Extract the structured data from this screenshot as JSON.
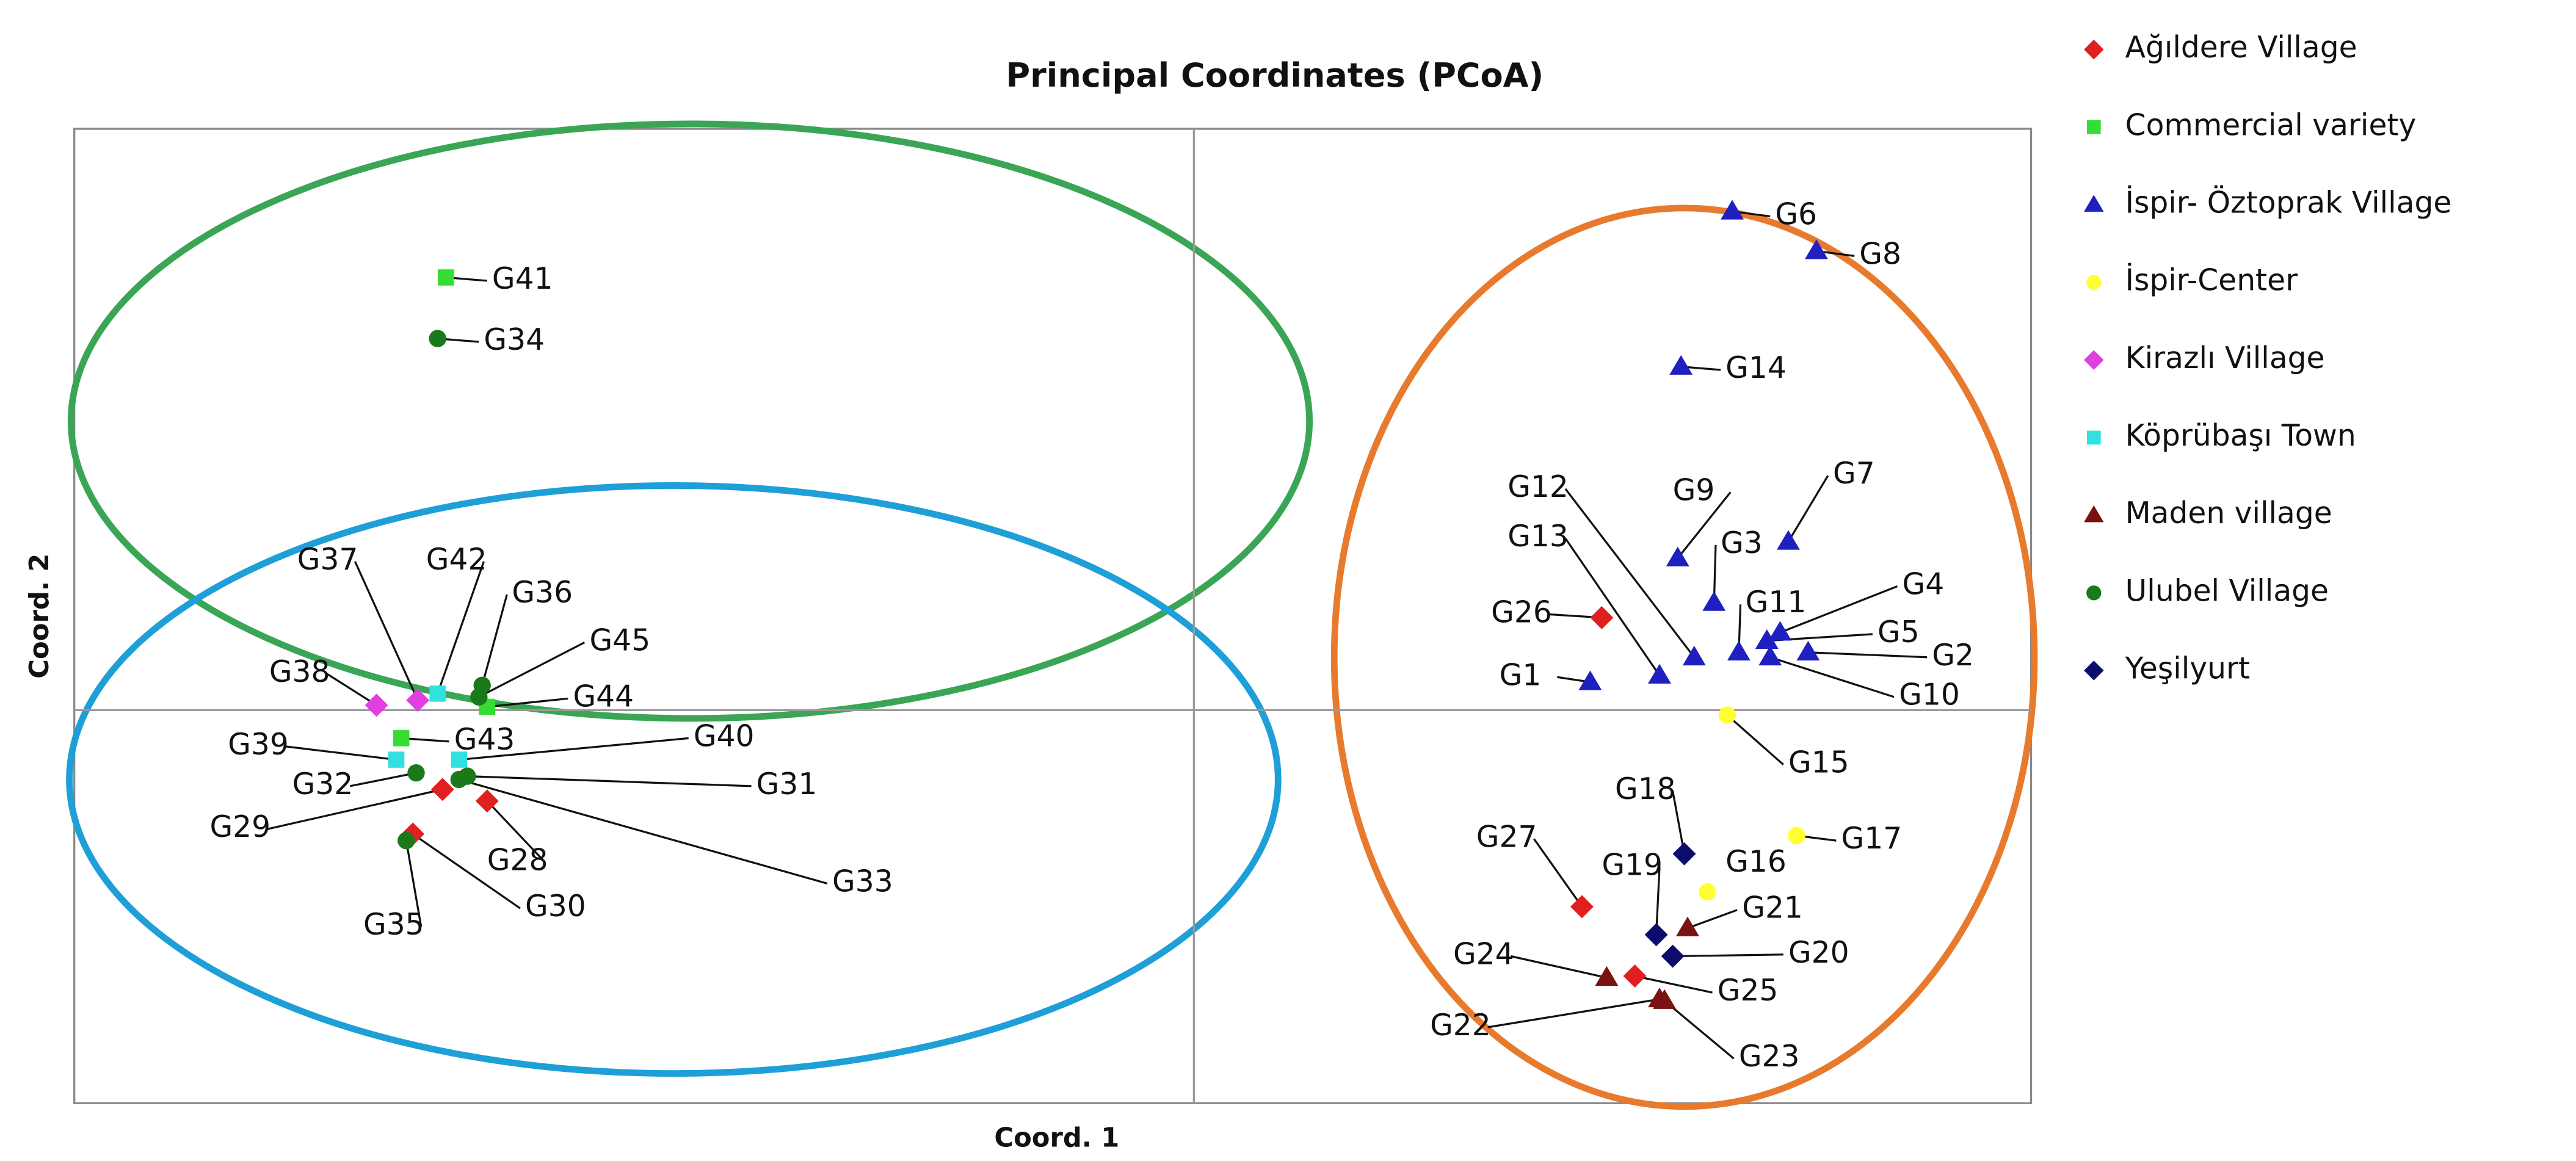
{
  "chart_data": {
    "type": "scatter",
    "title": "Principal Coordinates (PCoA)",
    "x_label": "Coord. 1",
    "y_label": "Coord. 2",
    "xlim": [
      -6.78,
      5.07
    ],
    "ylim": [
      -2.38,
      3.52
    ],
    "series": [
      {
        "name": "Ağıldere Village",
        "color": "#e0201e",
        "marker": "diamond",
        "labels": [
          "G26",
          "G27",
          "G25",
          "G28",
          "G29",
          "G30"
        ],
        "x": [
          2.47,
          2.35,
          2.67,
          -4.28,
          -4.55,
          -4.73
        ],
        "values": [
          0.56,
          -1.19,
          -1.61,
          -0.55,
          -0.48,
          -0.75
        ]
      },
      {
        "name": "Commercial variety",
        "color": "#33dd33",
        "marker": "square",
        "labels": [
          "G41",
          "G44",
          "G43"
        ],
        "x": [
          -4.53,
          -4.28,
          -4.8
        ],
        "values": [
          2.62,
          0.02,
          -0.17
        ]
      },
      {
        "name": "İspir- Öztoprak Village",
        "color": "#2020c0",
        "marker": "triangle",
        "labels": [
          "G6",
          "G8",
          "G14",
          "G7",
          "G9",
          "G3",
          "G11",
          "G4",
          "G5",
          "G2",
          "G10",
          "G12",
          "G13",
          "G1"
        ],
        "x": [
          3.26,
          3.77,
          2.95,
          3.6,
          2.93,
          3.15,
          3.3,
          3.55,
          3.47,
          3.72,
          3.49,
          3.03,
          2.82,
          2.4
        ],
        "values": [
          3.02,
          2.78,
          2.08,
          1.02,
          0.92,
          0.65,
          0.35,
          0.47,
          0.42,
          0.35,
          0.32,
          0.32,
          0.21,
          0.17
        ]
      },
      {
        "name": "İspir-Center",
        "color": "#ffff33",
        "marker": "circle",
        "labels": [
          "G15",
          "G17",
          "G16"
        ],
        "x": [
          3.23,
          3.65,
          3.11
        ],
        "values": [
          -0.03,
          -0.76,
          -1.1
        ]
      },
      {
        "name": "Kirazlı Village",
        "color": "#e040e0",
        "marker": "diamond",
        "labels": [
          "G38",
          "G37"
        ],
        "x": [
          -4.95,
          -4.7
        ],
        "values": [
          0.03,
          0.06
        ]
      },
      {
        "name": "Köprübaşı Town",
        "color": "#33e0e0",
        "marker": "square",
        "labels": [
          "G39",
          "G40",
          "G42"
        ],
        "x": [
          -4.83,
          -4.45,
          -4.58
        ],
        "values": [
          -0.3,
          -0.3,
          0.1
        ]
      },
      {
        "name": "Maden village",
        "color": "#7a1212",
        "marker": "triangle",
        "labels": [
          "G21",
          "G24",
          "G22",
          "G23"
        ],
        "x": [
          2.99,
          2.5,
          2.82,
          2.85
        ],
        "values": [
          -1.32,
          -1.62,
          -1.75,
          -1.76
        ]
      },
      {
        "name": "Ulubel Village",
        "color": "#1a7a1a",
        "marker": "circle",
        "labels": [
          "G34",
          "G36",
          "G45",
          "G31",
          "G32",
          "G33",
          "G35"
        ],
        "x": [
          -4.58,
          -4.31,
          -4.33,
          -4.4,
          -4.71,
          -4.45,
          -4.77
        ],
        "values": [
          2.25,
          0.15,
          0.08,
          -0.4,
          -0.38,
          -0.42,
          -0.79
        ]
      },
      {
        "name": "Yeşilyurt",
        "color": "#0c0c6c",
        "marker": "diamond",
        "labels": [
          "G18",
          "G19",
          "G20"
        ],
        "x": [
          2.97,
          2.8,
          2.9
        ],
        "values": [
          -0.87,
          -1.36,
          -1.49
        ]
      }
    ]
  }
}
